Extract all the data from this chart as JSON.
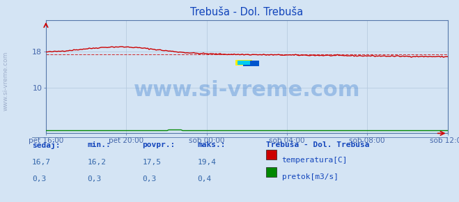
{
  "title": "Trebuša - Dol. Trebuša",
  "bg_color": "#d4e4f4",
  "plot_bg_color": "#d4e4f4",
  "grid_color": "#b8cce0",
  "temp_color": "#cc0000",
  "pretok_color": "#008800",
  "avg_line_color": "#cc0000",
  "tick_label_color": "#4466aa",
  "title_color": "#1144bb",
  "watermark_color": "#3377cc",
  "watermark_text": "www.si-vreme.com",
  "watermark_fontsize": 22,
  "watermark_alpha": 0.35,
  "xtick_labels": [
    "pet 16:00",
    "pet 20:00",
    "sob 00:00",
    "sob 04:00",
    "sob 08:00",
    "sob 12:00"
  ],
  "xtick_positions": [
    0,
    48,
    96,
    144,
    192,
    240
  ],
  "ytick_labels": [
    "10",
    "18"
  ],
  "ytick_positions": [
    10,
    18
  ],
  "ymin": 0,
  "ymax": 25,
  "xmin": 0,
  "xmax": 240,
  "avg_temp": 17.5,
  "legend_station": "Trebuša - Dol. Trebuša",
  "legend_temp": "temperatura[C]",
  "legend_pretok": "pretok[m3/s]",
  "footer_labels": [
    "sedaj:",
    "min.:",
    "povpr.:",
    "maks.:"
  ],
  "footer_temp": [
    "16,7",
    "16,2",
    "17,5",
    "19,4"
  ],
  "footer_pretok": [
    "0,3",
    "0,3",
    "0,3",
    "0,4"
  ],
  "spine_color": "#5577aa",
  "sidebar_text": "www.si-vreme.com",
  "sidebar_color": "#8899bb"
}
